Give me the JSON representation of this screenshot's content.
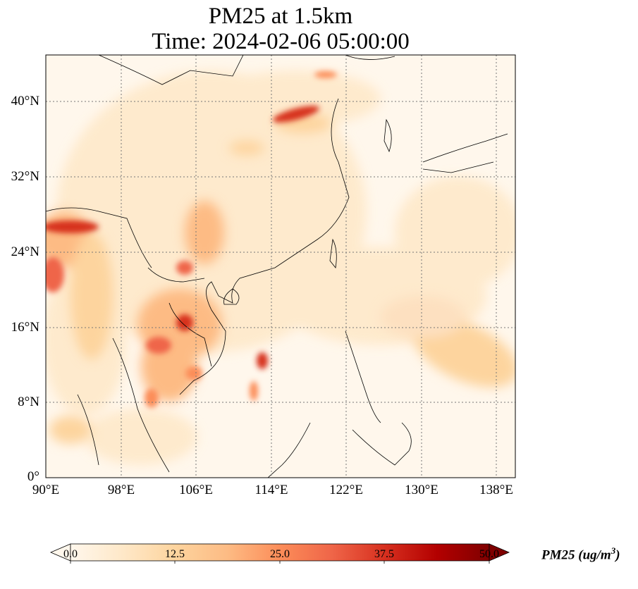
{
  "title": {
    "line1": "PM25 at 1.5km",
    "line2": "Time: 2024-02-06 05:00:00"
  },
  "map": {
    "lon_range": [
      90,
      140
    ],
    "lat_range": [
      0,
      40
    ],
    "lat_ticks": [
      "0°",
      "8°N",
      "16°N",
      "24°N",
      "32°N",
      "40°N"
    ],
    "lon_ticks": [
      "90°E",
      "98°E",
      "106°E",
      "114°E",
      "122°E",
      "130°E",
      "138°E"
    ],
    "gridlines": "dotted"
  },
  "colorbar": {
    "label_text": "PM25 (ug/m",
    "label_sup": "3",
    "label_close": ")",
    "ticks": [
      "0.0",
      "12.5",
      "25.0",
      "37.5",
      "50.0"
    ],
    "range": [
      0,
      50
    ],
    "colormap": "OrRd",
    "colors": [
      "#fff7ec",
      "#fee8c8",
      "#fdd49e",
      "#fdbb84",
      "#fc8d59",
      "#ef6548",
      "#d7301f",
      "#b30000",
      "#7f0000"
    ]
  }
}
